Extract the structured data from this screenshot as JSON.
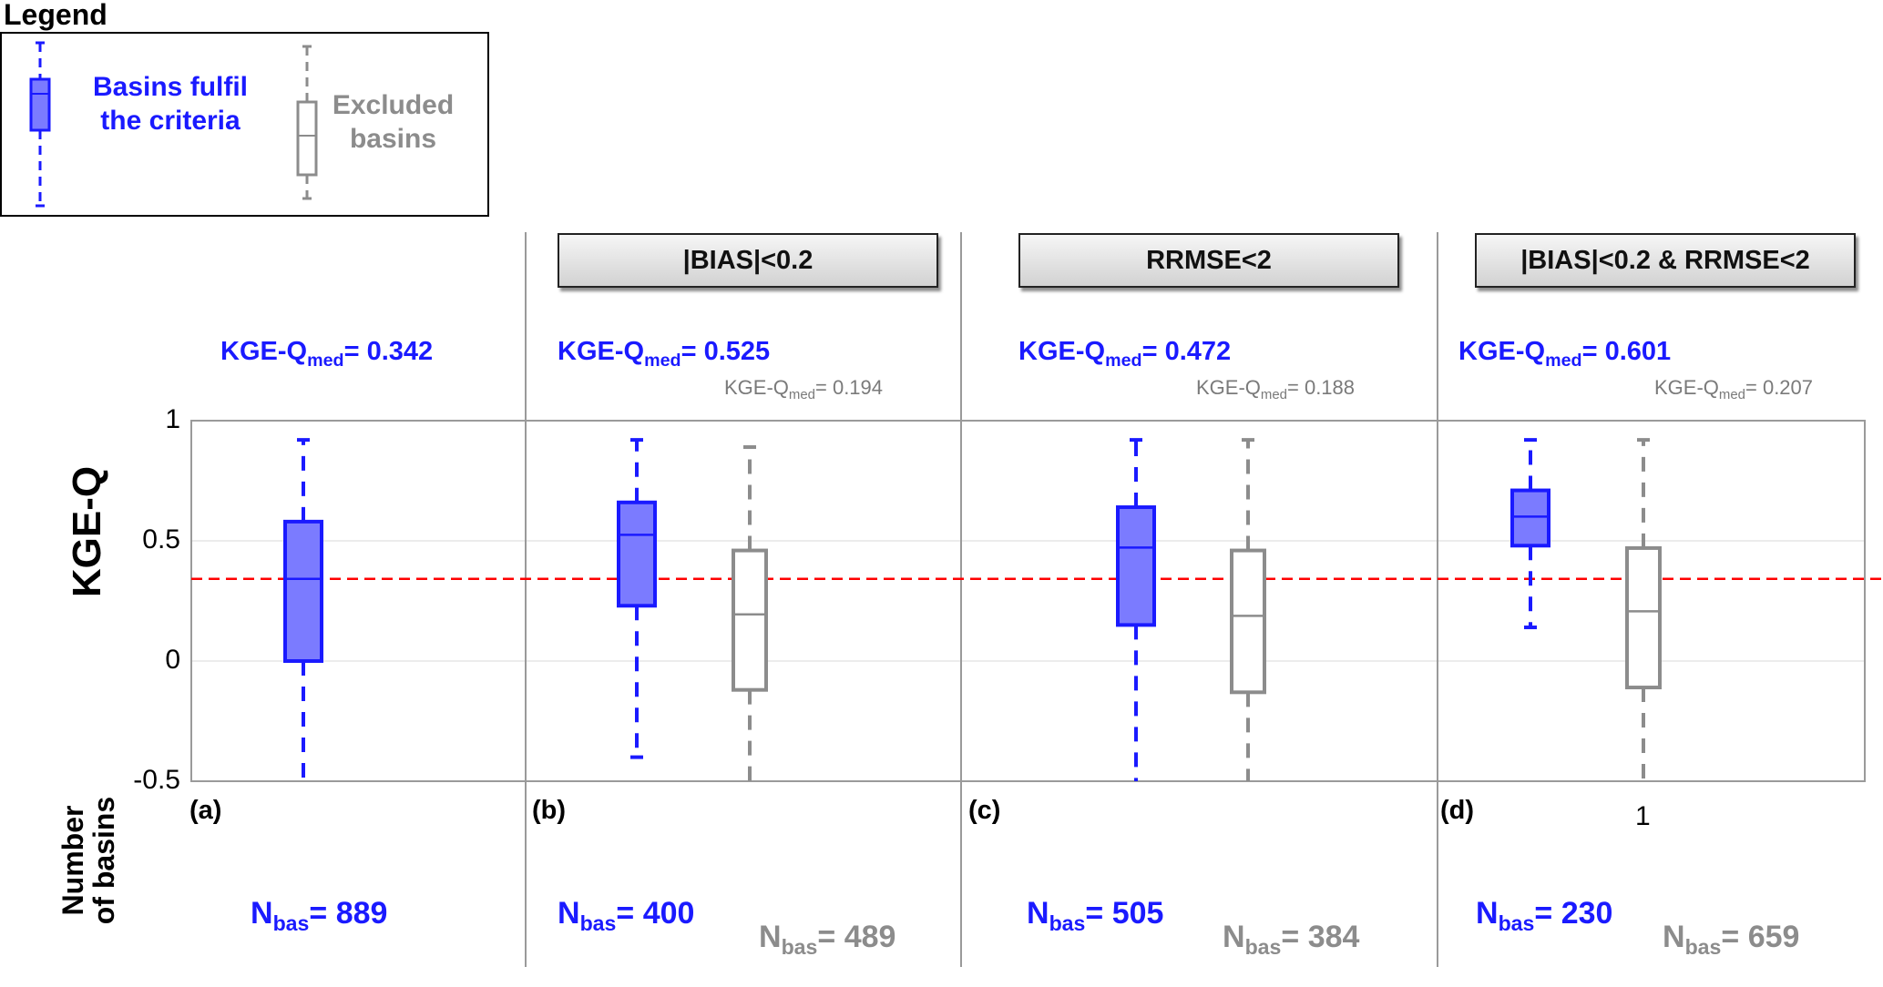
{
  "legend": {
    "title": "Legend",
    "fulfil_label_1": "Basins fulfil",
    "fulfil_label_2": "the criteria",
    "excluded_label_1": "Excluded",
    "excluded_label_2": "basins",
    "fulfil_color": "#1a1aff",
    "excluded_color": "#8c8c8c"
  },
  "axes": {
    "ylabel": "KGE-Q",
    "yticks": [
      "1",
      "0.5",
      "0",
      "-0.5"
    ],
    "xtick": "1",
    "bottom_label_1": "Number",
    "bottom_label_2": "of basins"
  },
  "panels": [
    {
      "letter": "(a)",
      "criterion": "",
      "kge_prefix": "KGE-Q",
      "kge_sub": "med",
      "kge_value": "= 0.342",
      "kge_excl_value": "",
      "nbas_prefix": "N",
      "nbas_sub": "bas",
      "nbas_value": "= 889",
      "nbas_excl_value": ""
    },
    {
      "letter": "(b)",
      "criterion": "|BIAS|<0.2",
      "kge_prefix": "KGE-Q",
      "kge_sub": "med",
      "kge_value": "= 0.525",
      "kge_excl_value": "= 0.194",
      "nbas_prefix": "N",
      "nbas_sub": "bas",
      "nbas_value": "= 400",
      "nbas_excl_value": "= 489"
    },
    {
      "letter": "(c)",
      "criterion": "RRMSE<2",
      "kge_prefix": "KGE-Q",
      "kge_sub": "med",
      "kge_value": "= 0.472",
      "kge_excl_value": "= 0.188",
      "nbas_prefix": "N",
      "nbas_sub": "bas",
      "nbas_value": "= 505",
      "nbas_excl_value": "= 384"
    },
    {
      "letter": "(d)",
      "criterion": "|BIAS|<0.2 & RRMSE<2",
      "kge_prefix": "KGE-Q",
      "kge_sub": "med",
      "kge_value": "= 0.601",
      "kge_excl_value": "= 0.207",
      "nbas_prefix": "N",
      "nbas_sub": "bas",
      "nbas_value": "= 230",
      "nbas_excl_value": "= 659"
    }
  ],
  "chart_data": {
    "type": "box",
    "ylabel": "KGE-Q",
    "ylim": [
      -0.5,
      1
    ],
    "yticks": [
      -0.5,
      0,
      0.5,
      1
    ],
    "reference_line": {
      "y": 0.342,
      "color": "#ff0000",
      "style": "dashed"
    },
    "grid": true,
    "boxes": [
      {
        "panel": "(a)",
        "group": "fulfil",
        "whisker_low": -0.5,
        "q1": 0.0,
        "median": 0.342,
        "q3": 0.58,
        "whisker_high": 0.92
      },
      {
        "panel": "(b)",
        "group": "fulfil",
        "whisker_low": -0.4,
        "q1": 0.23,
        "median": 0.525,
        "q3": 0.66,
        "whisker_high": 0.92
      },
      {
        "panel": "(b)",
        "group": "excluded",
        "whisker_low": -0.5,
        "q1": -0.12,
        "median": 0.194,
        "q3": 0.46,
        "whisker_high": 0.89
      },
      {
        "panel": "(c)",
        "group": "fulfil",
        "whisker_low": -0.5,
        "q1": 0.15,
        "median": 0.472,
        "q3": 0.64,
        "whisker_high": 0.92
      },
      {
        "panel": "(c)",
        "group": "excluded",
        "whisker_low": -0.5,
        "q1": -0.13,
        "median": 0.188,
        "q3": 0.46,
        "whisker_high": 0.92
      },
      {
        "panel": "(d)",
        "group": "fulfil",
        "whisker_low": 0.14,
        "q1": 0.48,
        "median": 0.601,
        "q3": 0.71,
        "whisker_high": 0.92
      },
      {
        "panel": "(d)",
        "group": "excluded",
        "whisker_low": -0.5,
        "q1": -0.11,
        "median": 0.207,
        "q3": 0.47,
        "whisker_high": 0.92
      }
    ]
  }
}
